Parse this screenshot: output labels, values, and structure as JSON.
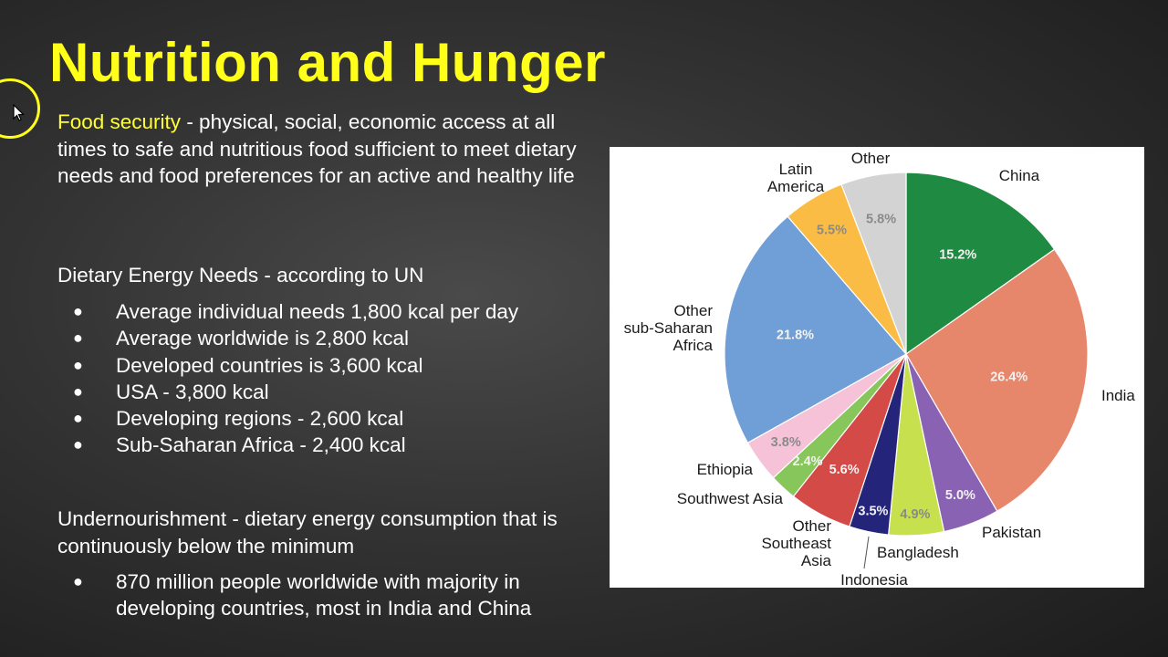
{
  "title": "Nutrition and Hunger",
  "food_security": {
    "term": "Food security",
    "definition": " - physical, social, economic access at all times to safe and nutritious food sufficient to meet dietary needs and food preferences for an active and healthy life"
  },
  "dietary": {
    "heading": "Dietary Energy Needs -  according to UN",
    "items": [
      "Average individual needs 1,800 kcal per day",
      "Average worldwide is 2,800 kcal",
      "Developed countries is 3,600 kcal",
      "USA - 3,800 kcal",
      "Developing regions - 2,600 kcal",
      "Sub-Saharan Africa - 2,400 kcal"
    ]
  },
  "undernourishment": {
    "heading": "Undernourishment - dietary energy consumption that is continuously below the minimum",
    "items": [
      "870 million people worldwide with majority in developing countries, most in India and China"
    ]
  },
  "bullet_glyph": "●",
  "chart_data": {
    "type": "pie",
    "title": "",
    "slices": [
      {
        "name": "China",
        "value": 15.2,
        "label": "15.2%",
        "color": "#1f8a41",
        "label_lines": [
          "China"
        ]
      },
      {
        "name": "India",
        "value": 26.4,
        "label": "26.4%",
        "color": "#e6866a",
        "label_lines": [
          "India"
        ]
      },
      {
        "name": "Pakistan",
        "value": 5.0,
        "label": "5.0%",
        "color": "#8a62b4",
        "label_lines": [
          "Pakistan"
        ]
      },
      {
        "name": "Bangladesh",
        "value": 4.9,
        "label": "4.9%",
        "color": "#c7e04d",
        "label_lines": [
          "Bangladesh"
        ]
      },
      {
        "name": "Indonesia",
        "value": 3.5,
        "label": "3.5%",
        "color": "#24247a",
        "label_lines": [
          "Indonesia"
        ]
      },
      {
        "name": "Other Southeast Asia",
        "value": 5.6,
        "label": "5.6%",
        "color": "#d34a47",
        "label_lines": [
          "Other",
          "Southeast",
          "Asia"
        ]
      },
      {
        "name": "Southwest Asia",
        "value": 2.4,
        "label": "2.4%",
        "color": "#86c65a",
        "label_lines": [
          "Southwest Asia"
        ]
      },
      {
        "name": "Ethiopia",
        "value": 3.8,
        "label": "3.8%",
        "color": "#f5c2d8",
        "label_lines": [
          "Ethiopia"
        ]
      },
      {
        "name": "Other sub-Saharan Africa",
        "value": 21.8,
        "label": "21.8%",
        "color": "#6f9fd6",
        "label_lines": [
          "Other",
          "sub-Saharan",
          "Africa"
        ]
      },
      {
        "name": "Latin America",
        "value": 5.5,
        "label": "5.5%",
        "color": "#fbbc45",
        "label_lines": [
          "Latin",
          "America"
        ]
      },
      {
        "name": "Other",
        "value": 5.8,
        "label": "5.8%",
        "color": "#d3d3d3",
        "label_lines": [
          "Other"
        ]
      }
    ]
  }
}
